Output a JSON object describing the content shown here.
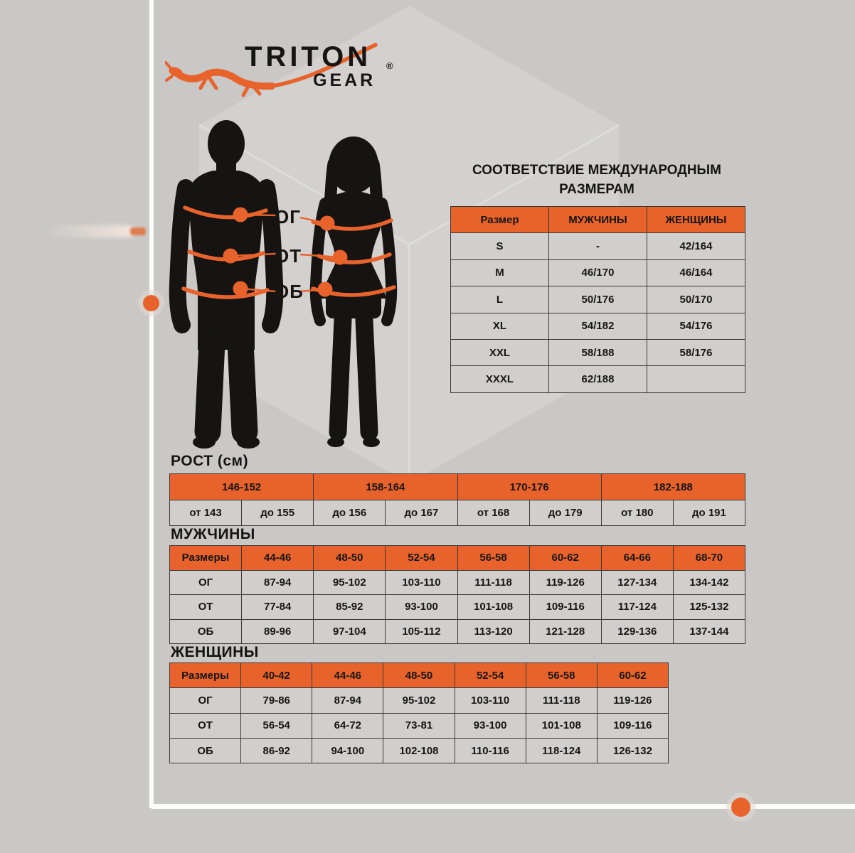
{
  "colors": {
    "background": "#c9c8c6",
    "accent_orange": "#e8632c",
    "text_black": "#161514",
    "frame_white": "#fbfbfa",
    "cell_gray": "#d0cfcd"
  },
  "logo": {
    "brand": "TRITON",
    "sub_brand": "GEAR",
    "registered_mark": "®"
  },
  "figures": {
    "chest_label": "ОГ",
    "waist_label": "ОТ",
    "hips_label": "ОБ"
  },
  "intl_table": {
    "title_line1": "СООТВЕТСТВИЕ МЕЖДУНАРОДНЫМ",
    "title_line2": "РАЗМЕРАМ",
    "headers": [
      "Размер",
      "МУЖЧИНЫ",
      "ЖЕНЩИНЫ"
    ],
    "rows": [
      [
        "S",
        "-",
        "42/164"
      ],
      [
        "M",
        "46/170",
        "46/164"
      ],
      [
        "L",
        "50/176",
        "50/170"
      ],
      [
        "XL",
        "54/182",
        "54/176"
      ],
      [
        "XXL",
        "58/188",
        "58/176"
      ],
      [
        "XXXL",
        "62/188",
        ""
      ]
    ]
  },
  "height_table": {
    "label": "РОСТ (см)",
    "groups": [
      "146-152",
      "158-164",
      "170-176",
      "182-188"
    ],
    "bounds": [
      "от 143",
      "до 155",
      "до 156",
      "до 167",
      "от 168",
      "до 179",
      "от 180",
      "до 191"
    ]
  },
  "men_table": {
    "label": "МУЖЧИНЫ",
    "headers": [
      "Размеры",
      "44-46",
      "48-50",
      "52-54",
      "56-58",
      "60-62",
      "64-66",
      "68-70"
    ],
    "rows": [
      [
        "ОГ",
        "87-94",
        "95-102",
        "103-110",
        "111-118",
        "119-126",
        "127-134",
        "134-142"
      ],
      [
        "ОТ",
        "77-84",
        "85-92",
        "93-100",
        "101-108",
        "109-116",
        "117-124",
        "125-132"
      ],
      [
        "ОБ",
        "89-96",
        "97-104",
        "105-112",
        "113-120",
        "121-128",
        "129-136",
        "137-144"
      ]
    ]
  },
  "women_table": {
    "label": "ЖЕНЩИНЫ",
    "headers": [
      "Размеры",
      "40-42",
      "44-46",
      "48-50",
      "52-54",
      "56-58",
      "60-62"
    ],
    "rows": [
      [
        "ОГ",
        "79-86",
        "87-94",
        "95-102",
        "103-110",
        "111-118",
        "119-126"
      ],
      [
        "ОТ",
        "56-54",
        "64-72",
        "73-81",
        "93-100",
        "101-108",
        "109-116"
      ],
      [
        "ОБ",
        "86-92",
        "94-100",
        "102-108",
        "110-116",
        "118-124",
        "126-132"
      ]
    ]
  }
}
